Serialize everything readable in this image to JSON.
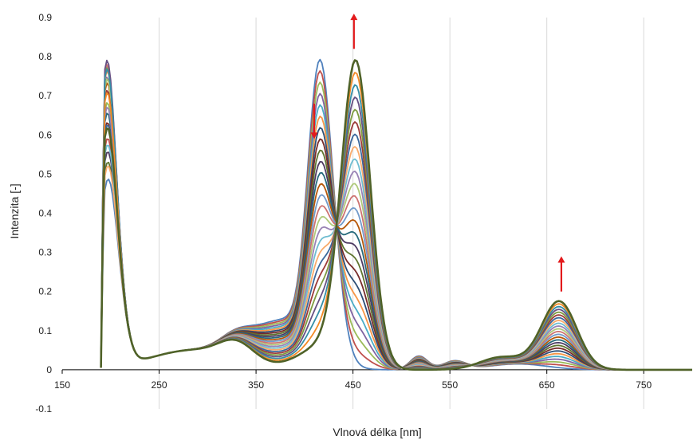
{
  "chart_data": {
    "type": "line",
    "title": "",
    "xlabel": "Vlnová délka [nm]",
    "ylabel": "Intenzita [-]",
    "xlim": [
      150,
      800
    ],
    "ylim": [
      -0.1,
      0.9
    ],
    "x_ticks": [
      150,
      250,
      350,
      450,
      550,
      650,
      750
    ],
    "x_tick_labels": [
      "150",
      "250",
      "350",
      "450",
      "550",
      "650",
      "750"
    ],
    "y_ticks": [
      -0.1,
      0,
      0.1,
      0.2,
      0.3,
      0.4,
      0.5,
      0.6,
      0.7,
      0.8,
      0.9
    ],
    "y_tick_labels": [
      "-0.1",
      "0",
      "0.1",
      "0.2",
      "0.3",
      "0.4",
      "0.5",
      "0.6",
      "0.7",
      "0.8",
      "0.9"
    ],
    "grid": "vertical",
    "legend": "none",
    "series_count": 25,
    "initial_state": {
      "peaks": [
        {
          "x": 192,
          "y": 0.65
        },
        {
          "x": 412,
          "y": 0.54
        },
        {
          "x": 421,
          "y": 0.58
        }
      ],
      "trough": {
        "x": 268,
        "y": 0.02
      }
    },
    "final_state": {
      "peaks": [
        {
          "x": 192,
          "y": 0.67
        },
        {
          "x": 453,
          "y": 0.79
        },
        {
          "x": 663,
          "y": 0.17
        }
      ],
      "trough": {
        "x": 268,
        "y": 0.04
      }
    },
    "isosbestic_point": {
      "x": 432,
      "y": 0.31
    },
    "annotations": [
      {
        "type": "arrow",
        "direction": "down",
        "x": 410,
        "y_from": 0.68,
        "y_to": 0.59,
        "color": "#e31a1c"
      },
      {
        "type": "arrow",
        "direction": "up",
        "x": 451,
        "y_from": 0.82,
        "y_to": 0.91,
        "color": "#e31a1c"
      },
      {
        "type": "arrow",
        "direction": "up",
        "x": 665,
        "y_from": 0.2,
        "y_to": 0.29,
        "color": "#e31a1c"
      }
    ],
    "colors": [
      "#4f81bd",
      "#c0504d",
      "#9bbb59",
      "#8064a2",
      "#4bacc6",
      "#f79646",
      "#2c4d75",
      "#772c2a",
      "#5f7530",
      "#4d3b62",
      "#276a7c",
      "#b65708",
      "#729aca",
      "#cd7371",
      "#afc97a",
      "#9983b5",
      "#6fbdd1",
      "#f9ab6b",
      "#3a679c",
      "#9d3b38",
      "#7e9c40",
      "#665083",
      "#358ea6",
      "#f38a26",
      "#4f6228"
    ]
  }
}
